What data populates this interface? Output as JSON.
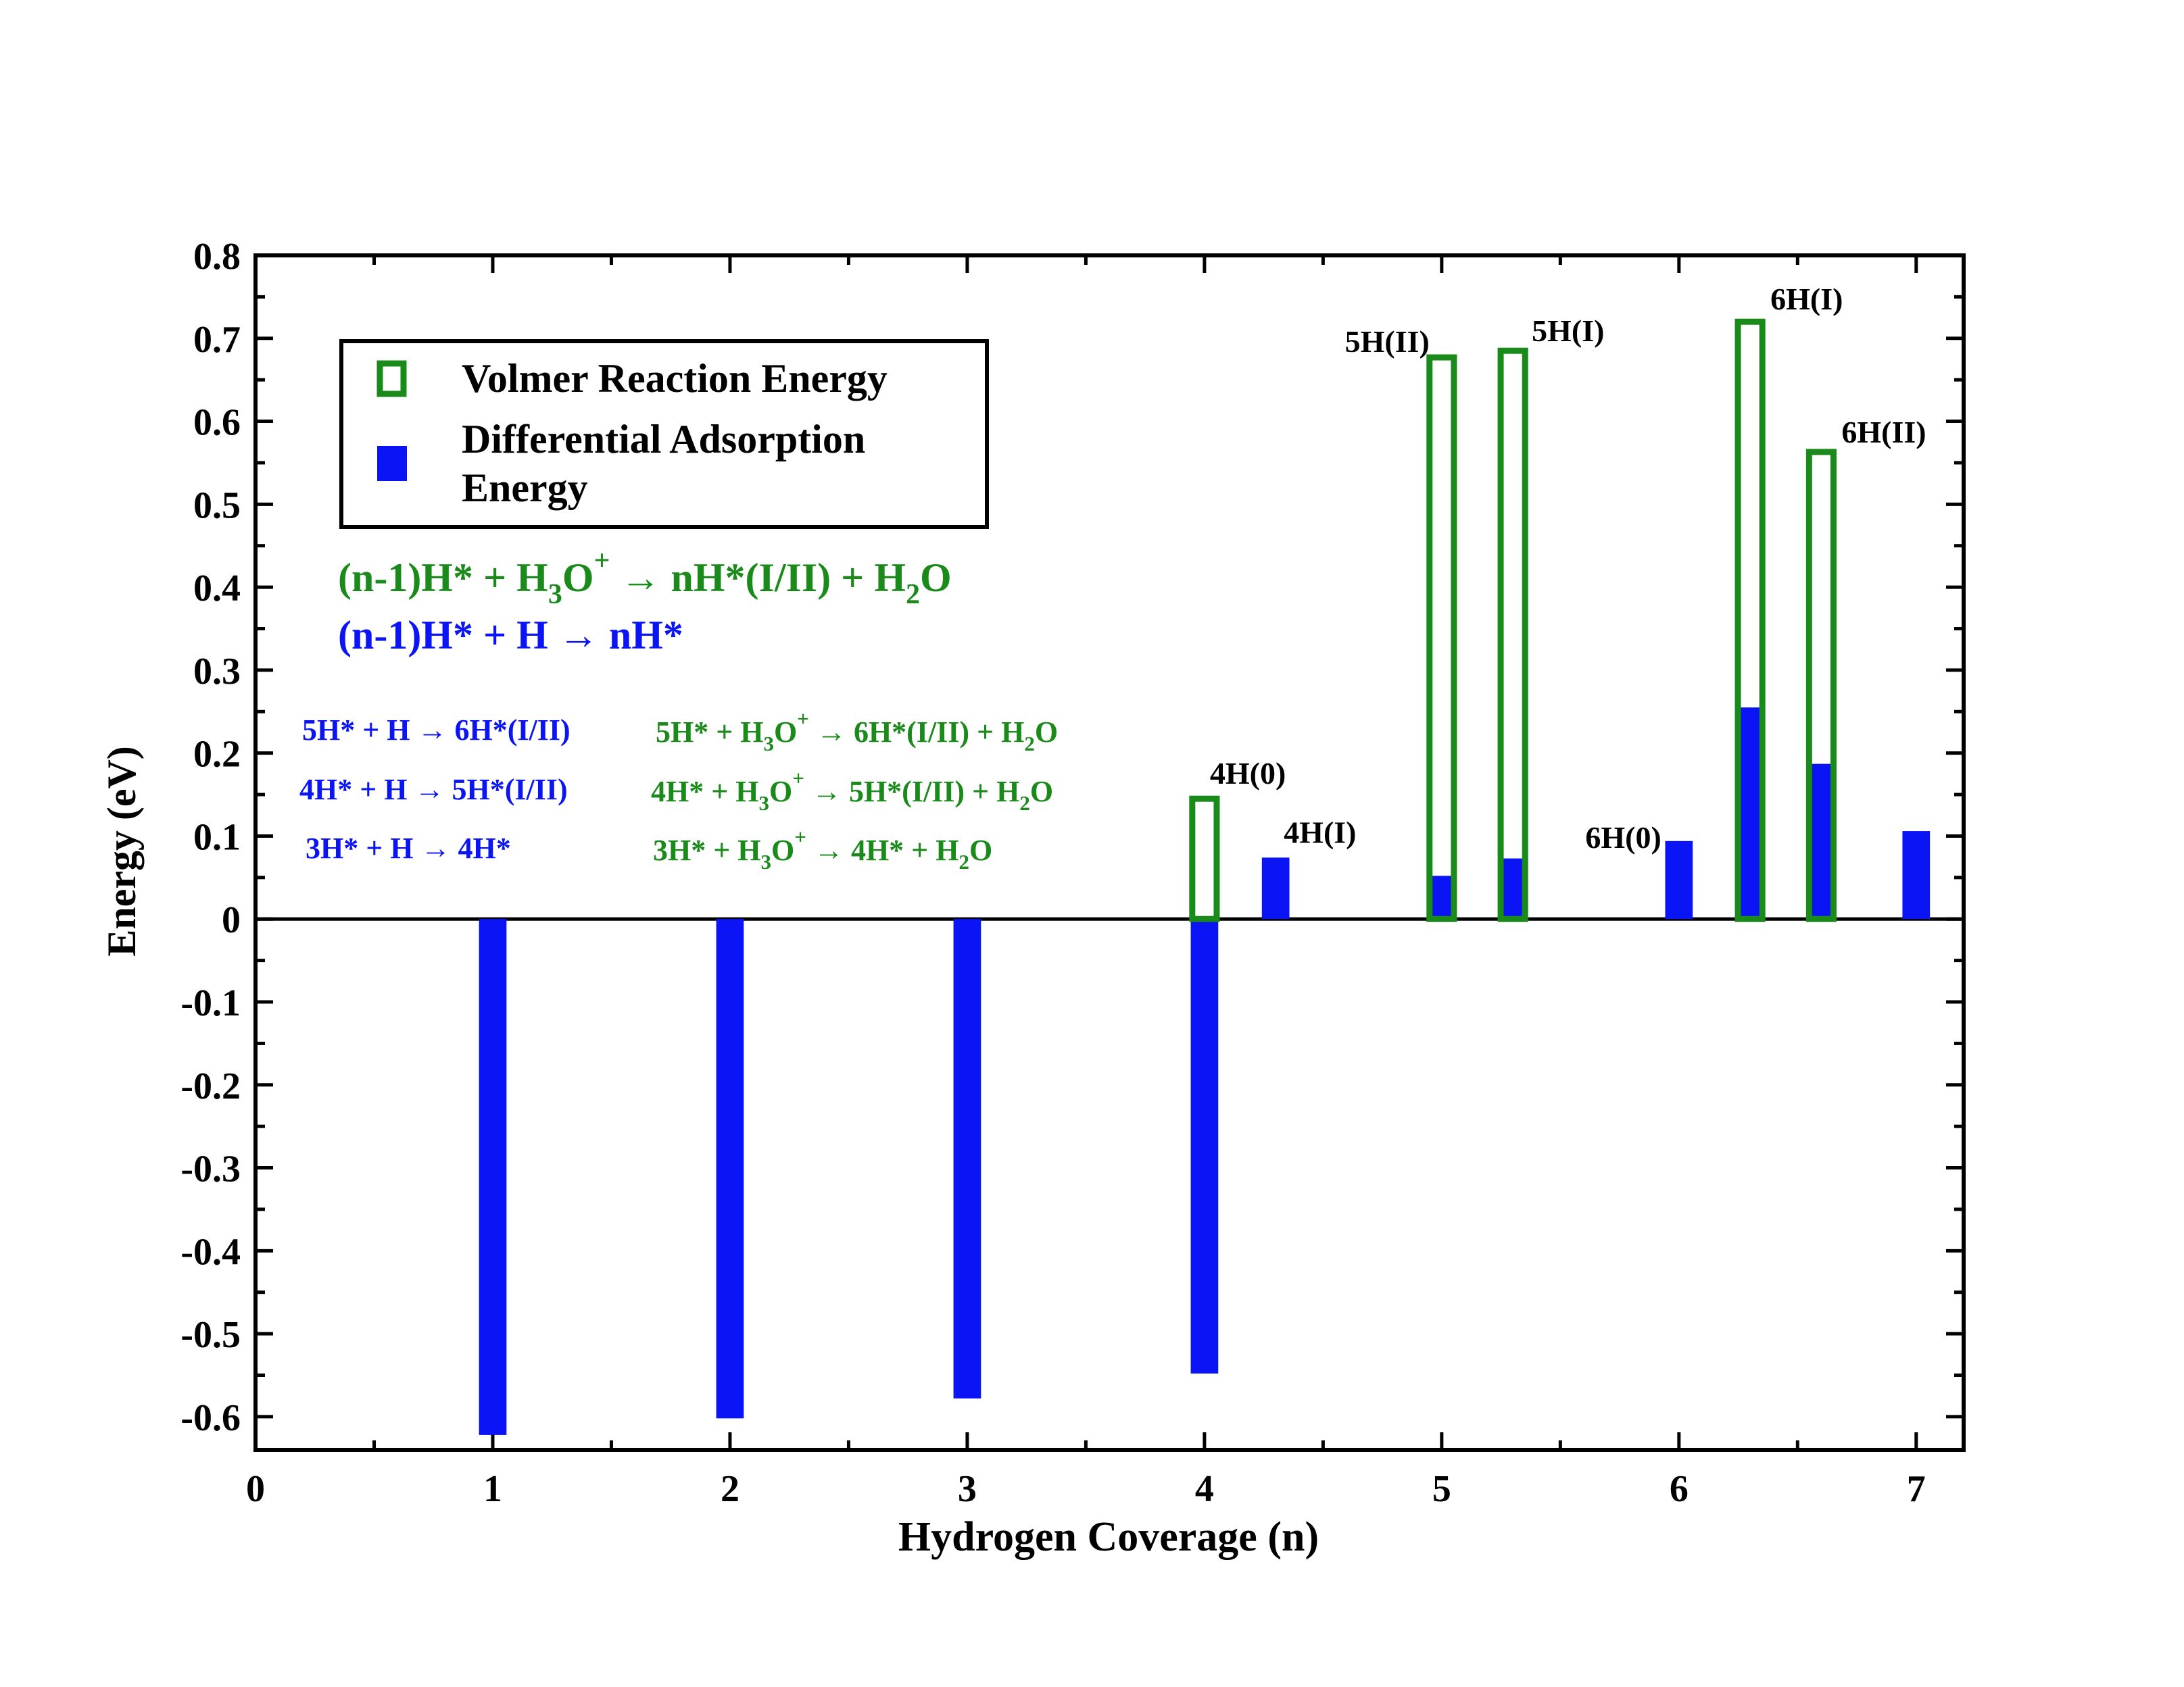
{
  "chart_data": {
    "type": "bar",
    "xlabel": "Hydrogen Coverage (n)",
    "ylabel": "Energy (eV)",
    "xlim": [
      0,
      7.2
    ],
    "ylim": [
      -0.64,
      0.8
    ],
    "x_ticks": [
      "0",
      "1",
      "2",
      "3",
      "4",
      "5",
      "6",
      "7"
    ],
    "y_ticks": [
      "0.8",
      "0.7",
      "0.6",
      "0.5",
      "0.4",
      "0.3",
      "0.2",
      "0.1",
      "0",
      "-0.1",
      "-0.2",
      "-0.3",
      "-0.4",
      "-0.5",
      "-0.6"
    ],
    "colors": {
      "volmer": "#1a8a1a",
      "differential": "#0a14f5"
    },
    "legend": {
      "placement": "top-left",
      "entries": [
        {
          "label": "Volmer Reaction Energy",
          "style": "outline",
          "series": "volmer"
        },
        {
          "label_lines": [
            "Differential Adsorption",
            "Energy"
          ],
          "style": "filled",
          "series": "differential"
        }
      ]
    },
    "series": [
      {
        "name": "Volmer Reaction Energy",
        "style": "outline",
        "points": [
          {
            "x": 4.0,
            "y": 0.145
          },
          {
            "x": 5.0,
            "y": 0.677
          },
          {
            "x": 5.3,
            "y": 0.685
          },
          {
            "x": 6.3,
            "y": 0.72
          },
          {
            "x": 6.6,
            "y": 0.563
          }
        ]
      },
      {
        "name": "Differential Adsorption Energy",
        "style": "filled",
        "points": [
          {
            "x": 1.0,
            "y": -0.622
          },
          {
            "x": 2.0,
            "y": -0.602
          },
          {
            "x": 3.0,
            "y": -0.578
          },
          {
            "x": 4.0,
            "y": -0.548
          },
          {
            "x": 4.3,
            "y": 0.074
          },
          {
            "x": 5.0,
            "y": 0.052
          },
          {
            "x": 5.3,
            "y": 0.073
          },
          {
            "x": 6.0,
            "y": 0.094
          },
          {
            "x": 6.3,
            "y": 0.255
          },
          {
            "x": 6.6,
            "y": 0.187
          },
          {
            "x": 7.0,
            "y": 0.106
          }
        ]
      }
    ],
    "bar_labels": [
      {
        "text": "4H(0)",
        "x": 4.0,
        "y": 0.145
      },
      {
        "text": "4H(I)",
        "x": 4.3,
        "y": 0.074
      },
      {
        "text": "5H(II)",
        "x": 5.0,
        "y": 0.677
      },
      {
        "text": "5H(I)",
        "x": 5.3,
        "y": 0.685
      },
      {
        "text": "6H(0)",
        "x": 6.0,
        "y": 0.094
      },
      {
        "text": "6H(I)",
        "x": 6.3,
        "y": 0.72
      },
      {
        "text": "6H(II)",
        "x": 6.6,
        "y": 0.563
      }
    ],
    "annotations": {
      "volmer_general": {
        "a": "(n-1)H* + H",
        "b": "3",
        "c": "O",
        "d": "+",
        "e": " → nH*(I/II) + H",
        "f": "2",
        "g": "O"
      },
      "differential_general": "(n-1)H* + H → nH*",
      "differential_steps": [
        "5H* + H → 6H*(I/II)",
        "4H* + H → 5H*(I/II)",
        "3H* + H → 4H*"
      ],
      "volmer_steps": [
        {
          "a": "5H* + H",
          "b": "3",
          "c": "O",
          "d": "+",
          "e": " → 6H*(I/II) + H",
          "f": "2",
          "g": "O"
        },
        {
          "a": "4H* + H",
          "b": "3",
          "c": "O",
          "d": "+",
          "e": " → 5H*(I/II) + H",
          "f": "2",
          "g": "O"
        },
        {
          "a": "3H* + H",
          "b": "3",
          "c": "O",
          "d": "+",
          "e": " → 4H* + H",
          "f": "2",
          "g": "O"
        }
      ]
    }
  }
}
